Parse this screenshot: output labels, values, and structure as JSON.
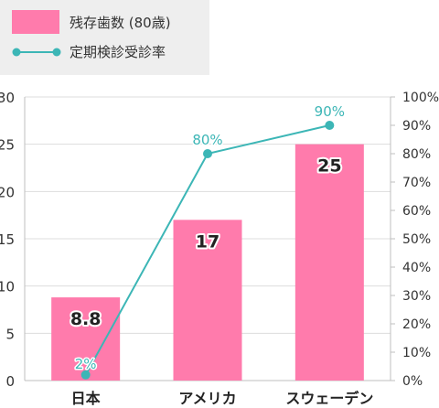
{
  "chart_data": {
    "type": "bar",
    "categories": [
      "日本",
      "アメリカ",
      "スウェーデン"
    ],
    "series": [
      {
        "name": "残存歯数 (80歳)",
        "type": "bar",
        "axis": "left",
        "values": [
          8.8,
          17,
          25
        ],
        "labels": [
          "8.8",
          "17",
          "25"
        ],
        "color": "#ff7bac"
      },
      {
        "name": "定期検診受診率",
        "type": "line",
        "axis": "right",
        "values": [
          2,
          80,
          90
        ],
        "labels": [
          "2%",
          "80%",
          "90%"
        ],
        "color": "#3cb6b6"
      }
    ],
    "y_left": {
      "range": [
        0,
        30
      ],
      "ticks": [
        "0",
        "5",
        "10",
        "15",
        "20",
        "25",
        "30"
      ]
    },
    "y_right": {
      "range": [
        0,
        100
      ],
      "ticks": [
        "0%",
        "10%",
        "20%",
        "30%",
        "40%",
        "50%",
        "60%",
        "70%",
        "80%",
        "90%",
        "100%"
      ]
    },
    "grid": true,
    "legend": "top-left"
  }
}
